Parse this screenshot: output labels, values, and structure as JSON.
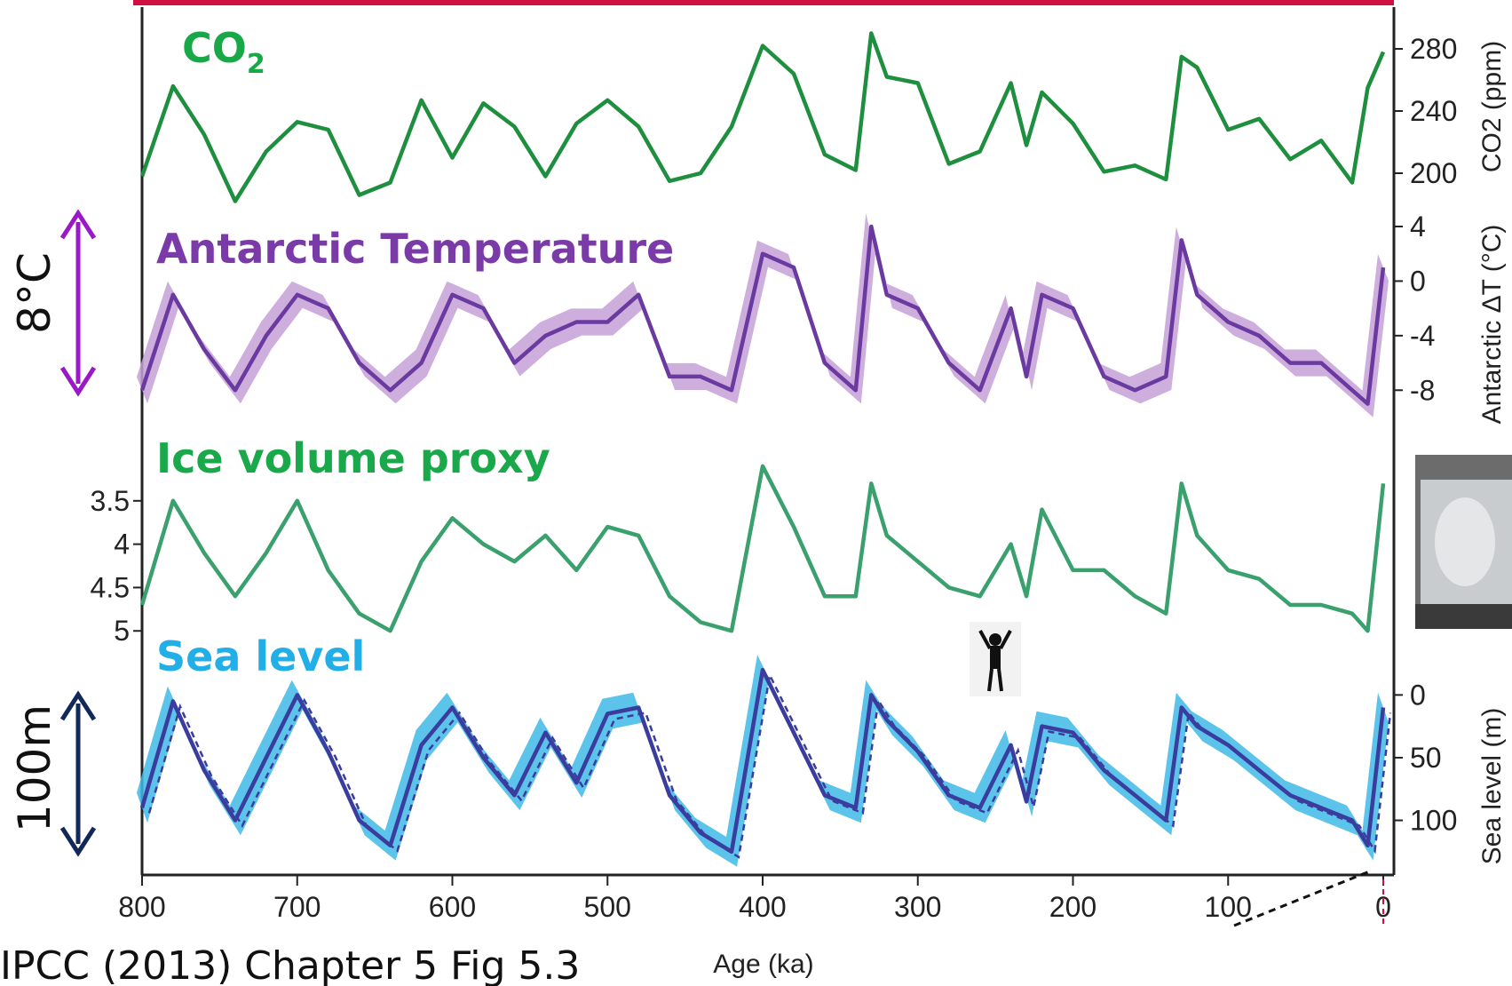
{
  "caption": "IPCC (2013) Chapter 5 Fig 5.3",
  "scale_markers": {
    "temperature": "8°C",
    "sea_level": "100m"
  },
  "colors": {
    "co2": "#1e8f3e",
    "co2_title": "#18a848",
    "temperature": "#6a3aa0",
    "temperature_band": "#c5a0d6",
    "temperature_title": "#7a3aa8",
    "ice_volume": "#3aa06e",
    "ice_title": "#19a84a",
    "sea_level_band": "#3fb9e6",
    "sea_level_line": "#3a3c9e",
    "sea_level_title": "#22aee6",
    "temp_arrow": "#9a18c8",
    "sea_arrow": "#12285a",
    "top_bar": "#d01040"
  },
  "chart_data": [
    {
      "type": "line",
      "panel_title": "CO",
      "panel_title_sub": "2",
      "ylabel": "CO2 (ppm)",
      "y_ticks": [
        "280",
        "240",
        "200"
      ],
      "ylim": [
        180,
        300
      ],
      "x": [
        800,
        780,
        760,
        740,
        720,
        700,
        680,
        660,
        640,
        620,
        600,
        580,
        560,
        540,
        520,
        500,
        480,
        460,
        440,
        420,
        400,
        380,
        360,
        340,
        330,
        320,
        300,
        280,
        260,
        240,
        230,
        220,
        200,
        180,
        160,
        140,
        130,
        120,
        100,
        80,
        60,
        40,
        20,
        10,
        0
      ],
      "series": [
        {
          "values": [
            198,
            256,
            225,
            182,
            214,
            233,
            228,
            186,
            194,
            247,
            210,
            245,
            230,
            198,
            232,
            247,
            230,
            195,
            200,
            230,
            282,
            264,
            212,
            202,
            290,
            262,
            258,
            206,
            214,
            258,
            218,
            252,
            232,
            201,
            205,
            196,
            275,
            268,
            228,
            235,
            209,
            221,
            194,
            255,
            278
          ]
        }
      ]
    },
    {
      "type": "line",
      "panel_title": "Antarctic Temperature",
      "ylabel": "Antarctic ΔT (°C)",
      "y_ticks": [
        "4",
        "0",
        "-4",
        "-8"
      ],
      "ylim": [
        -10,
        4
      ],
      "x": [
        800,
        780,
        760,
        740,
        720,
        700,
        680,
        660,
        640,
        620,
        600,
        580,
        560,
        540,
        520,
        500,
        480,
        460,
        440,
        420,
        400,
        380,
        360,
        340,
        330,
        320,
        300,
        280,
        260,
        240,
        230,
        220,
        200,
        180,
        160,
        140,
        130,
        120,
        100,
        80,
        60,
        40,
        20,
        10,
        0
      ],
      "series": [
        {
          "values": [
            -8,
            -1,
            -5,
            -8,
            -4,
            -1,
            -2,
            -6,
            -8,
            -6,
            -1,
            -2,
            -6,
            -4,
            -3,
            -3,
            -1,
            -7,
            -7,
            -8,
            2,
            1,
            -6,
            -8,
            4,
            -1,
            -2,
            -6,
            -8,
            -2,
            -7,
            -1,
            -2,
            -7,
            -8,
            -7,
            3,
            -1,
            -3,
            -4,
            -6,
            -6,
            -8,
            -9,
            1
          ]
        }
      ]
    },
    {
      "type": "line",
      "panel_title": "Ice volume proxy",
      "y_ticks": [
        "3.5",
        "4",
        "4.5",
        "5"
      ],
      "ylim": [
        5.1,
        3.0
      ],
      "x": [
        800,
        780,
        760,
        740,
        720,
        700,
        680,
        660,
        640,
        620,
        600,
        580,
        560,
        540,
        520,
        500,
        480,
        460,
        440,
        420,
        400,
        380,
        360,
        340,
        330,
        320,
        300,
        280,
        260,
        240,
        230,
        220,
        200,
        180,
        160,
        140,
        130,
        120,
        100,
        80,
        60,
        40,
        20,
        10,
        0
      ],
      "series": [
        {
          "values": [
            4.7,
            3.5,
            4.1,
            4.6,
            4.1,
            3.5,
            4.3,
            4.8,
            5.0,
            4.2,
            3.7,
            4.0,
            4.2,
            3.9,
            4.3,
            3.8,
            3.9,
            4.6,
            4.9,
            5.0,
            3.1,
            3.8,
            4.6,
            4.6,
            3.3,
            3.9,
            4.2,
            4.5,
            4.6,
            4.0,
            4.6,
            3.6,
            4.3,
            4.3,
            4.6,
            4.8,
            3.3,
            3.9,
            4.3,
            4.4,
            4.7,
            4.7,
            4.8,
            5.0,
            3.3
          ]
        }
      ]
    },
    {
      "type": "area",
      "panel_title": "Sea level",
      "ylabel": "Sea level (m)",
      "y_ticks": [
        "0",
        "50",
        "100"
      ],
      "ylim": [
        140,
        -30
      ],
      "xlabel": "Age (ka)",
      "xlim": [
        800,
        0
      ],
      "x_ticks": [
        "800",
        "700",
        "600",
        "500",
        "400",
        "300",
        "200",
        "100",
        "0"
      ],
      "x": [
        800,
        780,
        760,
        740,
        720,
        700,
        680,
        660,
        640,
        620,
        600,
        580,
        560,
        540,
        520,
        500,
        480,
        460,
        440,
        420,
        400,
        380,
        360,
        340,
        330,
        320,
        300,
        280,
        260,
        240,
        230,
        220,
        200,
        180,
        160,
        140,
        130,
        120,
        100,
        80,
        60,
        40,
        20,
        10,
        0
      ],
      "series": [
        {
          "values": [
            90,
            5,
            60,
            100,
            50,
            0,
            45,
            100,
            120,
            40,
            10,
            50,
            80,
            30,
            70,
            15,
            10,
            80,
            110,
            125,
            -20,
            30,
            80,
            90,
            0,
            20,
            45,
            80,
            90,
            40,
            85,
            25,
            30,
            60,
            80,
            100,
            10,
            25,
            40,
            60,
            80,
            90,
            100,
            120,
            10
          ]
        }
      ]
    }
  ]
}
